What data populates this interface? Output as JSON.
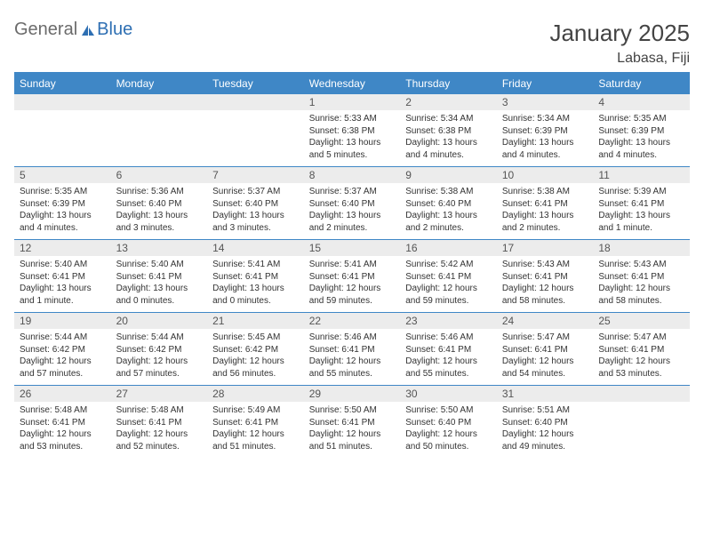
{
  "logo": {
    "text1": "General",
    "text2": "Blue"
  },
  "title": "January 2025",
  "location": "Labasa, Fiji",
  "colors": {
    "header_bg": "#3f87c6",
    "header_text": "#ffffff",
    "daynum_bg": "#ececec",
    "border": "#3f87c6",
    "body_text": "#333333",
    "logo_gray": "#6b6b6b",
    "logo_blue": "#2e6fb3"
  },
  "day_headers": [
    "Sunday",
    "Monday",
    "Tuesday",
    "Wednesday",
    "Thursday",
    "Friday",
    "Saturday"
  ],
  "weeks": [
    [
      null,
      null,
      null,
      {
        "n": "1",
        "t": "Sunrise: 5:33 AM\nSunset: 6:38 PM\nDaylight: 13 hours\nand 5 minutes."
      },
      {
        "n": "2",
        "t": "Sunrise: 5:34 AM\nSunset: 6:38 PM\nDaylight: 13 hours\nand 4 minutes."
      },
      {
        "n": "3",
        "t": "Sunrise: 5:34 AM\nSunset: 6:39 PM\nDaylight: 13 hours\nand 4 minutes."
      },
      {
        "n": "4",
        "t": "Sunrise: 5:35 AM\nSunset: 6:39 PM\nDaylight: 13 hours\nand 4 minutes."
      }
    ],
    [
      {
        "n": "5",
        "t": "Sunrise: 5:35 AM\nSunset: 6:39 PM\nDaylight: 13 hours\nand 4 minutes."
      },
      {
        "n": "6",
        "t": "Sunrise: 5:36 AM\nSunset: 6:40 PM\nDaylight: 13 hours\nand 3 minutes."
      },
      {
        "n": "7",
        "t": "Sunrise: 5:37 AM\nSunset: 6:40 PM\nDaylight: 13 hours\nand 3 minutes."
      },
      {
        "n": "8",
        "t": "Sunrise: 5:37 AM\nSunset: 6:40 PM\nDaylight: 13 hours\nand 2 minutes."
      },
      {
        "n": "9",
        "t": "Sunrise: 5:38 AM\nSunset: 6:40 PM\nDaylight: 13 hours\nand 2 minutes."
      },
      {
        "n": "10",
        "t": "Sunrise: 5:38 AM\nSunset: 6:41 PM\nDaylight: 13 hours\nand 2 minutes."
      },
      {
        "n": "11",
        "t": "Sunrise: 5:39 AM\nSunset: 6:41 PM\nDaylight: 13 hours\nand 1 minute."
      }
    ],
    [
      {
        "n": "12",
        "t": "Sunrise: 5:40 AM\nSunset: 6:41 PM\nDaylight: 13 hours\nand 1 minute."
      },
      {
        "n": "13",
        "t": "Sunrise: 5:40 AM\nSunset: 6:41 PM\nDaylight: 13 hours\nand 0 minutes."
      },
      {
        "n": "14",
        "t": "Sunrise: 5:41 AM\nSunset: 6:41 PM\nDaylight: 13 hours\nand 0 minutes."
      },
      {
        "n": "15",
        "t": "Sunrise: 5:41 AM\nSunset: 6:41 PM\nDaylight: 12 hours\nand 59 minutes."
      },
      {
        "n": "16",
        "t": "Sunrise: 5:42 AM\nSunset: 6:41 PM\nDaylight: 12 hours\nand 59 minutes."
      },
      {
        "n": "17",
        "t": "Sunrise: 5:43 AM\nSunset: 6:41 PM\nDaylight: 12 hours\nand 58 minutes."
      },
      {
        "n": "18",
        "t": "Sunrise: 5:43 AM\nSunset: 6:41 PM\nDaylight: 12 hours\nand 58 minutes."
      }
    ],
    [
      {
        "n": "19",
        "t": "Sunrise: 5:44 AM\nSunset: 6:42 PM\nDaylight: 12 hours\nand 57 minutes."
      },
      {
        "n": "20",
        "t": "Sunrise: 5:44 AM\nSunset: 6:42 PM\nDaylight: 12 hours\nand 57 minutes."
      },
      {
        "n": "21",
        "t": "Sunrise: 5:45 AM\nSunset: 6:42 PM\nDaylight: 12 hours\nand 56 minutes."
      },
      {
        "n": "22",
        "t": "Sunrise: 5:46 AM\nSunset: 6:41 PM\nDaylight: 12 hours\nand 55 minutes."
      },
      {
        "n": "23",
        "t": "Sunrise: 5:46 AM\nSunset: 6:41 PM\nDaylight: 12 hours\nand 55 minutes."
      },
      {
        "n": "24",
        "t": "Sunrise: 5:47 AM\nSunset: 6:41 PM\nDaylight: 12 hours\nand 54 minutes."
      },
      {
        "n": "25",
        "t": "Sunrise: 5:47 AM\nSunset: 6:41 PM\nDaylight: 12 hours\nand 53 minutes."
      }
    ],
    [
      {
        "n": "26",
        "t": "Sunrise: 5:48 AM\nSunset: 6:41 PM\nDaylight: 12 hours\nand 53 minutes."
      },
      {
        "n": "27",
        "t": "Sunrise: 5:48 AM\nSunset: 6:41 PM\nDaylight: 12 hours\nand 52 minutes."
      },
      {
        "n": "28",
        "t": "Sunrise: 5:49 AM\nSunset: 6:41 PM\nDaylight: 12 hours\nand 51 minutes."
      },
      {
        "n": "29",
        "t": "Sunrise: 5:50 AM\nSunset: 6:41 PM\nDaylight: 12 hours\nand 51 minutes."
      },
      {
        "n": "30",
        "t": "Sunrise: 5:50 AM\nSunset: 6:40 PM\nDaylight: 12 hours\nand 50 minutes."
      },
      {
        "n": "31",
        "t": "Sunrise: 5:51 AM\nSunset: 6:40 PM\nDaylight: 12 hours\nand 49 minutes."
      },
      null
    ]
  ]
}
